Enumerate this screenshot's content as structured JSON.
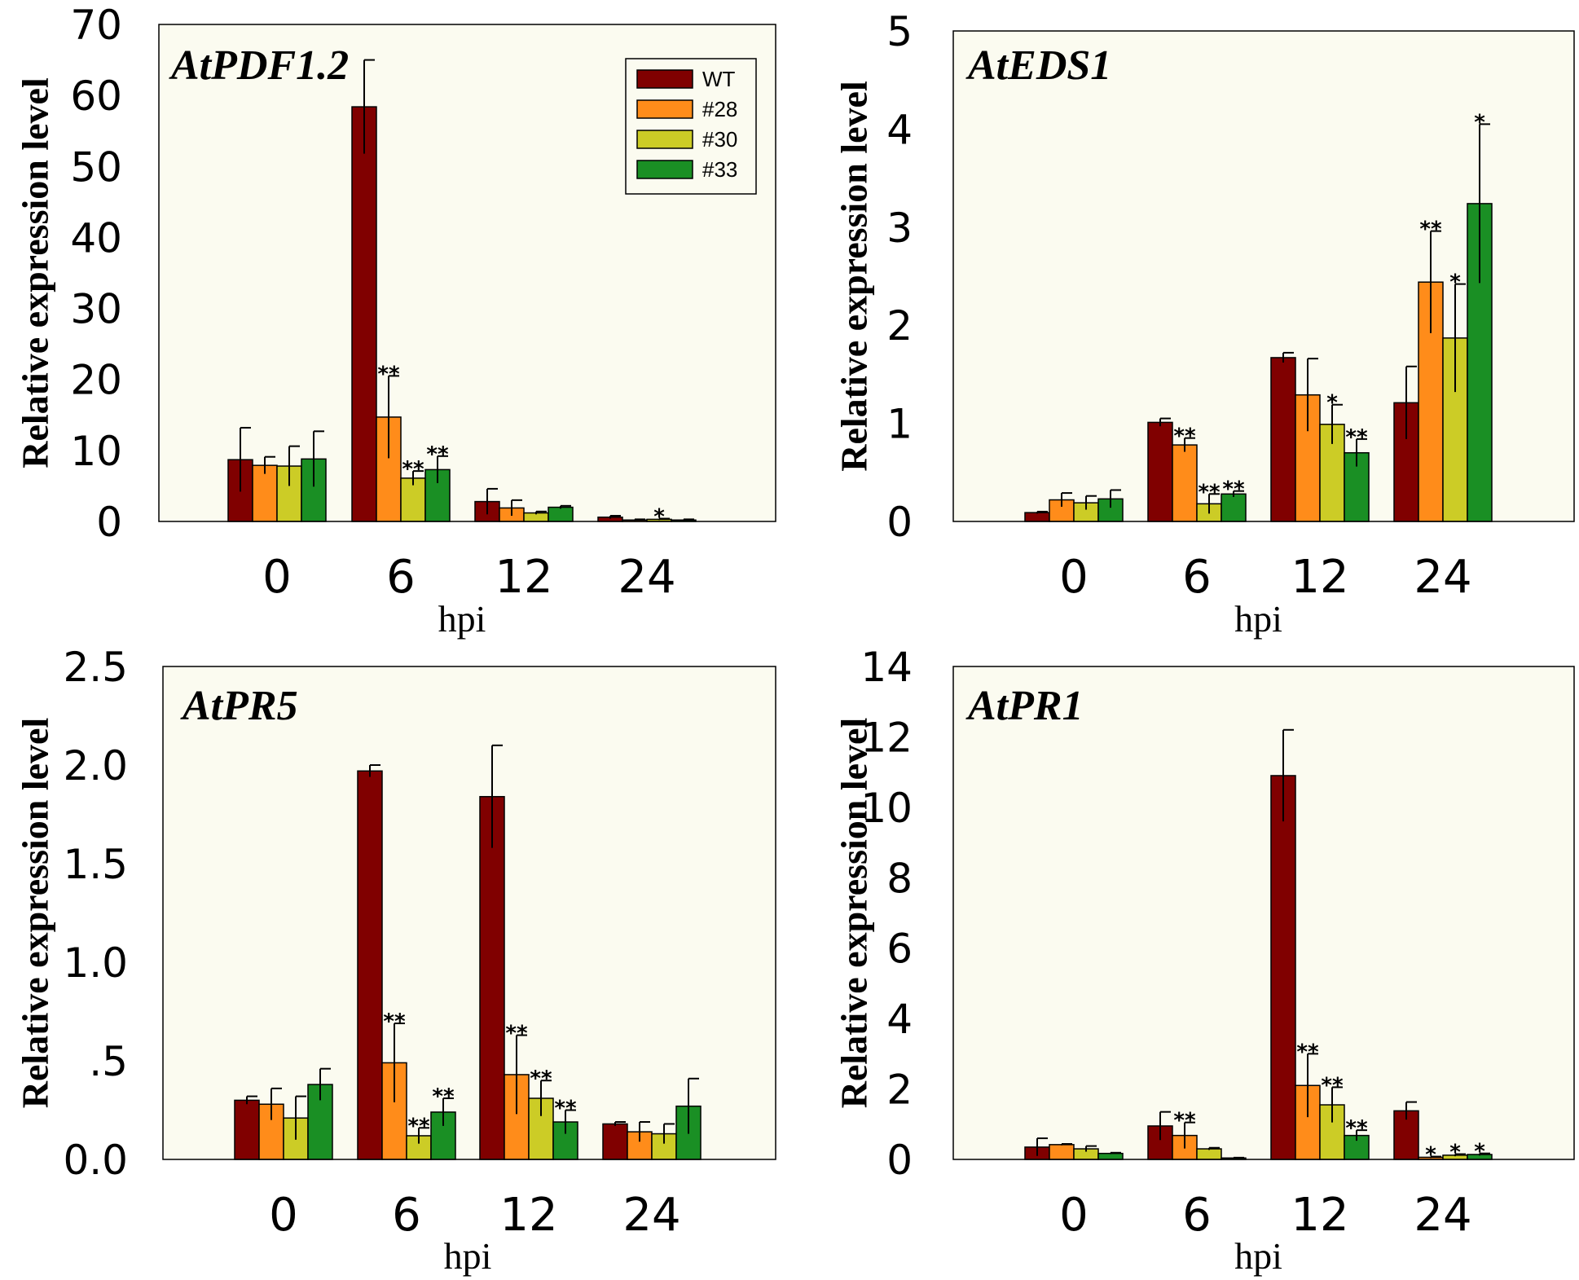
{
  "figure": {
    "legend": [
      "WT",
      "#28",
      "#30",
      "#33"
    ],
    "colors": {
      "WT": "#800000",
      "#28": "#FF8C1A",
      "#30": "#CCCC26",
      "#33": "#1A8F24"
    },
    "background": "#FBFBF0"
  },
  "chart_data": [
    {
      "type": "bar",
      "title": "AtPDF1.2",
      "xlabel": "hpi",
      "ylabel": "Relative expression level",
      "categories": [
        "0",
        "6",
        "12",
        "24"
      ],
      "ylim": [
        0,
        70
      ],
      "yticks": [
        "0",
        "10",
        "20",
        "30",
        "40",
        "50",
        "60",
        "70"
      ],
      "ytick_values": [
        0,
        10,
        20,
        30,
        40,
        50,
        60,
        70
      ],
      "show_legend": true,
      "series": [
        {
          "name": "WT",
          "values": [
            8.7,
            58.4,
            2.8,
            0.6
          ],
          "errors": [
            4.5,
            6.6,
            1.8,
            0.2
          ],
          "sig": [
            "",
            "",
            "",
            ""
          ]
        },
        {
          "name": "#28",
          "values": [
            7.9,
            14.7,
            1.9,
            0.2
          ],
          "errors": [
            1.2,
            5.8,
            1.1,
            0.1
          ],
          "sig": [
            "",
            "**",
            "",
            ""
          ]
        },
        {
          "name": "#30",
          "values": [
            7.8,
            6.1,
            1.2,
            0.3
          ],
          "errors": [
            2.8,
            1.0,
            0.2,
            0.1
          ],
          "sig": [
            "",
            "**",
            "",
            "*"
          ]
        },
        {
          "name": "#33",
          "values": [
            8.8,
            7.3,
            2.0,
            0.2
          ],
          "errors": [
            3.9,
            1.9,
            0.2,
            0.1
          ],
          "sig": [
            "",
            "**",
            "",
            ""
          ]
        }
      ]
    },
    {
      "type": "bar",
      "title": "AtEDS1",
      "xlabel": "hpi",
      "ylabel": "Relative expression level",
      "categories": [
        "0",
        "6",
        "12",
        "24"
      ],
      "ylim": [
        0,
        5
      ],
      "yticks": [
        "0",
        "1",
        "2",
        "3",
        "4",
        "5"
      ],
      "ytick_values": [
        0,
        1,
        2,
        3,
        4,
        5
      ],
      "show_legend": false,
      "series": [
        {
          "name": "WT",
          "values": [
            0.09,
            1.01,
            1.67,
            1.21
          ],
          "errors": [
            0.01,
            0.04,
            0.05,
            0.37
          ],
          "sig": [
            "",
            "",
            "",
            ""
          ]
        },
        {
          "name": "#28",
          "values": [
            0.22,
            0.78,
            1.29,
            2.44
          ],
          "errors": [
            0.07,
            0.07,
            0.37,
            0.52
          ],
          "sig": [
            "",
            "**",
            "",
            "**"
          ]
        },
        {
          "name": "#30",
          "values": [
            0.19,
            0.18,
            0.99,
            1.87
          ],
          "errors": [
            0.07,
            0.1,
            0.2,
            0.55
          ],
          "sig": [
            "",
            "**",
            "*",
            "*"
          ]
        },
        {
          "name": "#33",
          "values": [
            0.23,
            0.28,
            0.7,
            3.24
          ],
          "errors": [
            0.09,
            0.03,
            0.14,
            0.81
          ],
          "sig": [
            "",
            "**",
            "**",
            "*"
          ]
        }
      ]
    },
    {
      "type": "bar",
      "title": "AtPR5",
      "xlabel": "hpi",
      "ylabel": "Relative expression level",
      "categories": [
        "0",
        "6",
        "12",
        "24"
      ],
      "ylim": [
        0,
        2.5
      ],
      "yticks": [
        "0.0",
        ".5",
        "1.0",
        "1.5",
        "2.0",
        "2.5"
      ],
      "ytick_values": [
        0,
        0.5,
        1.0,
        1.5,
        2.0,
        2.5
      ],
      "show_legend": false,
      "series": [
        {
          "name": "WT",
          "values": [
            0.3,
            1.97,
            1.84,
            0.18
          ],
          "errors": [
            0.02,
            0.03,
            0.26,
            0.01
          ],
          "sig": [
            "",
            "",
            "",
            ""
          ]
        },
        {
          "name": "#28",
          "values": [
            0.28,
            0.49,
            0.43,
            0.14
          ],
          "errors": [
            0.08,
            0.2,
            0.2,
            0.05
          ],
          "sig": [
            "",
            "**",
            "**",
            ""
          ]
        },
        {
          "name": "#30",
          "values": [
            0.21,
            0.12,
            0.31,
            0.13
          ],
          "errors": [
            0.11,
            0.04,
            0.09,
            0.05
          ],
          "sig": [
            "",
            "**",
            "**",
            ""
          ]
        },
        {
          "name": "#33",
          "values": [
            0.38,
            0.24,
            0.19,
            0.27
          ],
          "errors": [
            0.08,
            0.07,
            0.06,
            0.14
          ],
          "sig": [
            "",
            "**",
            "**",
            ""
          ]
        }
      ]
    },
    {
      "type": "bar",
      "title": "AtPR1",
      "xlabel": "hpi",
      "ylabel": "Relative expression level",
      "categories": [
        "0",
        "6",
        "12",
        "24"
      ],
      "ylim": [
        0,
        14
      ],
      "yticks": [
        "0",
        "2",
        "4",
        "6",
        "8",
        "10",
        "12",
        "14"
      ],
      "ytick_values": [
        0,
        2,
        4,
        6,
        8,
        10,
        12,
        14
      ],
      "show_legend": false,
      "series": [
        {
          "name": "WT",
          "values": [
            0.35,
            0.95,
            10.9,
            1.38
          ],
          "errors": [
            0.25,
            0.4,
            1.3,
            0.25
          ],
          "sig": [
            "",
            "",
            "",
            ""
          ]
        },
        {
          "name": "#28",
          "values": [
            0.42,
            0.68,
            2.1,
            0.06
          ],
          "errors": [
            0.02,
            0.37,
            0.9,
            0.02
          ],
          "sig": [
            "",
            "**",
            "**",
            "*"
          ]
        },
        {
          "name": "#30",
          "values": [
            0.3,
            0.3,
            1.55,
            0.12
          ],
          "errors": [
            0.08,
            0.03,
            0.5,
            0.03
          ],
          "sig": [
            "",
            "",
            "**",
            "*"
          ]
        },
        {
          "name": "#33",
          "values": [
            0.17,
            0.04,
            0.68,
            0.14
          ],
          "errors": [
            0.02,
            0.01,
            0.15,
            0.03
          ],
          "sig": [
            "",
            "",
            "**",
            "*"
          ]
        }
      ]
    }
  ]
}
